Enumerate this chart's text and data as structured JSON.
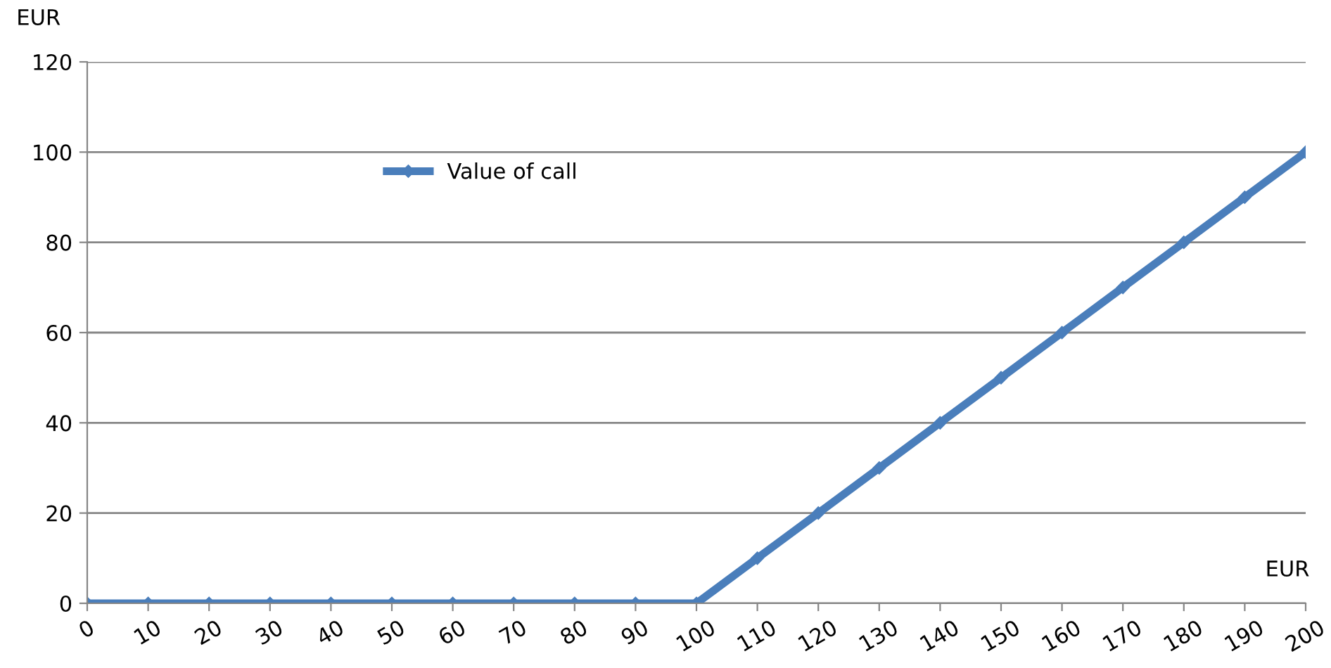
{
  "chart_data": {
    "type": "line",
    "xlabel": "EUR",
    "ylabel": "EUR",
    "x": [
      0,
      10,
      20,
      30,
      40,
      50,
      60,
      70,
      80,
      90,
      100,
      110,
      120,
      130,
      140,
      150,
      160,
      170,
      180,
      190,
      200
    ],
    "series": [
      {
        "name": "Value of call",
        "color": "#4a7ebb",
        "values": [
          0,
          0,
          0,
          0,
          0,
          0,
          0,
          0,
          0,
          0,
          0,
          10,
          20,
          30,
          40,
          50,
          60,
          70,
          80,
          90,
          100
        ]
      }
    ],
    "xlim": [
      0,
      200
    ],
    "xticks": [
      0,
      10,
      20,
      30,
      40,
      50,
      60,
      70,
      80,
      90,
      100,
      110,
      120,
      130,
      140,
      150,
      160,
      170,
      180,
      190,
      200
    ],
    "ylim": [
      0,
      120
    ],
    "yticks": [
      0,
      20,
      40,
      60,
      80,
      100,
      120
    ],
    "grid": "y",
    "legend": "top left",
    "marker": "diamond",
    "line_style": "solid"
  }
}
